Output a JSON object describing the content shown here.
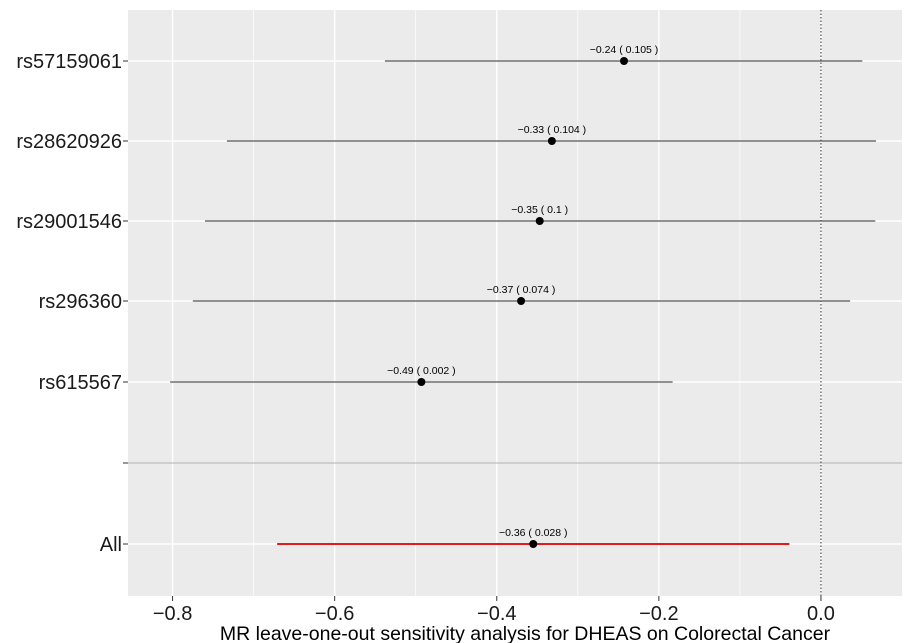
{
  "chart_data": {
    "type": "forest",
    "title": "",
    "xlabel": "MR leave-one-out sensitivity analysis for DHEAS on Colorectal Cancer",
    "ylabel": "",
    "xlim": [
      -0.855,
      0.1
    ],
    "x_ticks": [
      -0.8,
      -0.6,
      -0.4,
      -0.2,
      0.0
    ],
    "x_tick_labels": [
      "−0.8",
      "−0.6",
      "−0.4",
      "−0.2",
      "0.0"
    ],
    "reference_line_x": 0.0,
    "grid": true,
    "colors": {
      "panel_background": "#EBEBEB",
      "grid": "#FFFFFF",
      "snp_line": "#555555",
      "all_line": "#E41A1C",
      "point": "#000000",
      "separator": "#B0B0B0"
    },
    "rows": [
      {
        "label": "rs57159061",
        "estimate": -0.243,
        "lower": -0.538,
        "upper": 0.051,
        "annotation": "−0.24 ( 0.105 )",
        "group": "snp"
      },
      {
        "label": "rs28620926",
        "estimate": -0.332,
        "lower": -0.733,
        "upper": 0.068,
        "annotation": "−0.33 ( 0.104 )",
        "group": "snp"
      },
      {
        "label": "rs29001546",
        "estimate": -0.347,
        "lower": -0.76,
        "upper": 0.067,
        "annotation": "−0.35 ( 0.1 )",
        "group": "snp"
      },
      {
        "label": "rs296360",
        "estimate": -0.37,
        "lower": -0.775,
        "upper": 0.036,
        "annotation": "−0.37 ( 0.074 )",
        "group": "snp"
      },
      {
        "label": "rs615567",
        "estimate": -0.493,
        "lower": -0.803,
        "upper": -0.183,
        "annotation": "−0.49 ( 0.002 )",
        "group": "snp"
      },
      {
        "label": "All",
        "estimate": -0.355,
        "lower": -0.671,
        "upper": -0.039,
        "annotation": "−0.36 ( 0.028 )",
        "group": "all"
      }
    ]
  }
}
